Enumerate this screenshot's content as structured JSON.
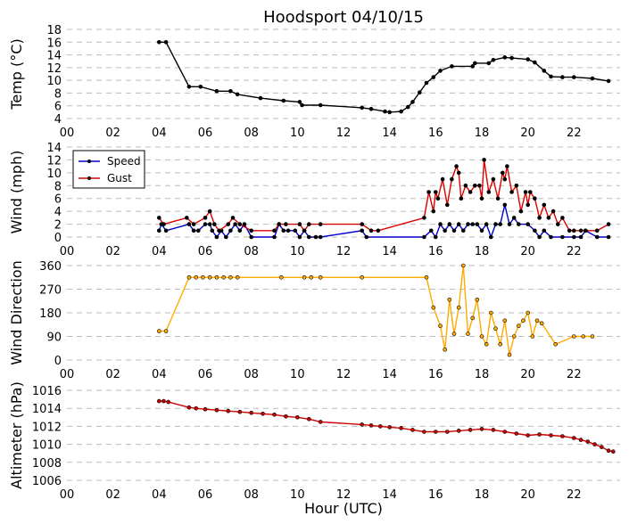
{
  "title": "Hoodsport 04/10/15",
  "xlabel": "Hour (UTC)",
  "x_ticks": [
    "00",
    "02",
    "04",
    "06",
    "08",
    "10",
    "12",
    "14",
    "16",
    "18",
    "20",
    "22"
  ],
  "chart_data": [
    {
      "type": "line",
      "ylabel": "Temp (°C)",
      "ylim": [
        4,
        18
      ],
      "yticks": [
        4,
        6,
        8,
        10,
        12,
        14,
        16,
        18
      ],
      "grid": true,
      "series": [
        {
          "color": "#000000",
          "x": [
            4.0,
            4.3,
            5.3,
            5.8,
            6.5,
            7.1,
            7.4,
            8.4,
            9.4,
            10.1,
            10.2,
            11.0,
            12.8,
            13.2,
            13.8,
            14.0,
            14.5,
            14.8,
            15.0,
            15.3,
            15.6,
            15.9,
            16.2,
            16.7,
            17.6,
            17.7,
            18.3,
            18.5,
            19.0,
            19.3,
            20.0,
            20.3,
            20.7,
            21.0,
            21.5,
            22.0,
            22.8,
            23.5
          ],
          "y": [
            16,
            16,
            9,
            9,
            8.3,
            8.3,
            7.8,
            7.2,
            6.8,
            6.6,
            6.1,
            6.1,
            5.7,
            5.5,
            5.1,
            5.0,
            5.1,
            5.8,
            6.6,
            8.1,
            9.6,
            10.5,
            11.5,
            12.2,
            12.2,
            12.7,
            12.7,
            13.2,
            13.6,
            13.5,
            13.3,
            12.8,
            11.5,
            10.6,
            10.5,
            10.5,
            10.3,
            9.9
          ]
        }
      ]
    },
    {
      "type": "line",
      "ylabel": "Wind (mph)",
      "ylim": [
        0,
        14
      ],
      "yticks": [
        0,
        2,
        4,
        6,
        8,
        10,
        12,
        14
      ],
      "grid": true,
      "legend": "top-left",
      "series": [
        {
          "name": "Speed",
          "color": "#0000cc",
          "x": [
            4.0,
            4.1,
            4.3,
            5.3,
            5.5,
            5.7,
            6.0,
            6.2,
            6.3,
            6.5,
            6.7,
            6.9,
            7.1,
            7.3,
            7.5,
            7.7,
            8.0,
            9.0,
            9.2,
            9.4,
            9.6,
            9.9,
            10.1,
            10.3,
            10.5,
            10.8,
            11.0,
            12.8,
            13.0,
            15.5,
            15.8,
            16.0,
            16.2,
            16.4,
            16.6,
            16.8,
            17.0,
            17.2,
            17.4,
            17.6,
            17.8,
            18.0,
            18.2,
            18.4,
            18.6,
            18.8,
            19.0,
            19.2,
            19.4,
            19.6,
            20.0,
            20.3,
            20.5,
            20.7,
            21.0,
            21.5,
            22.0,
            22.3,
            22.5,
            23.0,
            23.5
          ],
          "y": [
            1,
            2,
            1,
            2,
            1,
            1,
            2,
            2,
            1,
            0,
            1,
            0,
            1,
            2,
            1,
            2,
            0,
            0,
            2,
            1,
            1,
            1,
            0,
            1,
            0,
            0,
            0,
            1,
            0,
            0,
            1,
            0,
            2,
            1,
            2,
            1,
            2,
            1,
            2,
            2,
            2,
            1,
            2,
            0,
            2,
            2,
            5,
            2,
            3,
            2,
            2,
            1,
            0,
            1,
            0,
            0,
            0,
            0,
            1,
            0,
            0
          ]
        },
        {
          "name": "Gust",
          "color": "#dd0000",
          "x": [
            4.0,
            4.2,
            5.2,
            5.5,
            6.0,
            6.2,
            6.4,
            6.6,
            7.0,
            7.2,
            7.5,
            8.0,
            9.0,
            9.2,
            9.5,
            10.1,
            10.3,
            10.5,
            11.0,
            12.8,
            13.2,
            13.5,
            15.5,
            15.7,
            15.9,
            16.0,
            16.1,
            16.3,
            16.5,
            16.7,
            16.9,
            17.0,
            17.1,
            17.3,
            17.5,
            17.7,
            17.9,
            18.0,
            18.1,
            18.3,
            18.5,
            18.7,
            18.9,
            19.0,
            19.1,
            19.3,
            19.5,
            19.7,
            19.9,
            20.0,
            20.1,
            20.3,
            20.5,
            20.7,
            20.9,
            21.1,
            21.3,
            21.5,
            21.8,
            22.0,
            22.3,
            22.5,
            23.0,
            23.5
          ],
          "y": [
            3,
            2,
            3,
            2,
            3,
            4,
            2,
            1,
            2,
            3,
            2,
            1,
            1,
            2,
            2,
            2,
            1,
            2,
            2,
            2,
            1,
            1,
            3,
            7,
            4,
            7,
            6,
            9,
            5,
            9,
            11,
            10,
            6,
            8,
            7,
            8,
            8,
            6,
            12,
            7,
            9,
            6,
            10,
            9,
            11,
            7,
            8,
            4,
            7,
            5,
            7,
            6,
            3,
            5,
            3,
            4,
            2,
            3,
            1,
            1,
            1,
            1,
            1,
            2
          ]
        }
      ]
    },
    {
      "type": "scatter",
      "ylabel": "Wind Direction",
      "ylim": [
        0,
        360
      ],
      "yticks": [
        0,
        90,
        180,
        270,
        360
      ],
      "grid": true,
      "series": [
        {
          "color": "#ffaa00",
          "x": [
            4.0,
            4.3,
            5.3,
            5.6,
            5.9,
            6.2,
            6.5,
            6.8,
            7.1,
            7.4,
            9.3,
            10.3,
            10.6,
            11.0,
            12.8,
            15.6,
            15.9,
            16.2,
            16.4,
            16.6,
            16.8,
            17.0,
            17.2,
            17.4,
            17.6,
            17.8,
            18.0,
            18.2,
            18.4,
            18.6,
            18.8,
            19.0,
            19.2,
            19.4,
            19.6,
            19.8,
            20.0,
            20.2,
            20.4,
            20.6,
            21.2,
            22.0,
            22.4,
            22.8
          ],
          "y": [
            110,
            110,
            315,
            315,
            315,
            315,
            315,
            315,
            315,
            315,
            315,
            315,
            315,
            315,
            315,
            315,
            200,
            130,
            40,
            230,
            100,
            200,
            360,
            100,
            160,
            230,
            90,
            60,
            180,
            120,
            60,
            150,
            20,
            90,
            130,
            150,
            180,
            90,
            150,
            140,
            60,
            90,
            90,
            90
          ]
        }
      ]
    },
    {
      "type": "scatter",
      "ylabel": "Altimeter (hPa)",
      "ylim": [
        1006,
        1016
      ],
      "yticks": [
        1006,
        1008,
        1010,
        1012,
        1014,
        1016
      ],
      "grid": true,
      "series": [
        {
          "color": "#cc0000",
          "x": [
            4.0,
            4.2,
            4.4,
            5.3,
            5.6,
            6.0,
            6.5,
            7.0,
            7.5,
            8.0,
            8.5,
            9.0,
            9.5,
            10.0,
            10.5,
            11.0,
            12.8,
            13.2,
            13.6,
            14.0,
            14.5,
            15.0,
            15.5,
            16.0,
            16.5,
            17.0,
            17.5,
            18.0,
            18.5,
            19.0,
            19.5,
            20.0,
            20.5,
            21.0,
            21.5,
            22.0,
            22.3,
            22.6,
            22.9,
            23.2,
            23.5,
            23.7
          ],
          "y": [
            1014.8,
            1014.8,
            1014.7,
            1014.1,
            1014.0,
            1013.9,
            1013.8,
            1013.7,
            1013.6,
            1013.5,
            1013.4,
            1013.3,
            1013.1,
            1013.0,
            1012.8,
            1012.5,
            1012.2,
            1012.1,
            1012.0,
            1011.9,
            1011.8,
            1011.6,
            1011.4,
            1011.4,
            1011.4,
            1011.5,
            1011.6,
            1011.7,
            1011.6,
            1011.4,
            1011.2,
            1011.0,
            1011.1,
            1011.0,
            1010.9,
            1010.7,
            1010.5,
            1010.3,
            1010.0,
            1009.7,
            1009.3,
            1009.2
          ]
        }
      ]
    }
  ]
}
